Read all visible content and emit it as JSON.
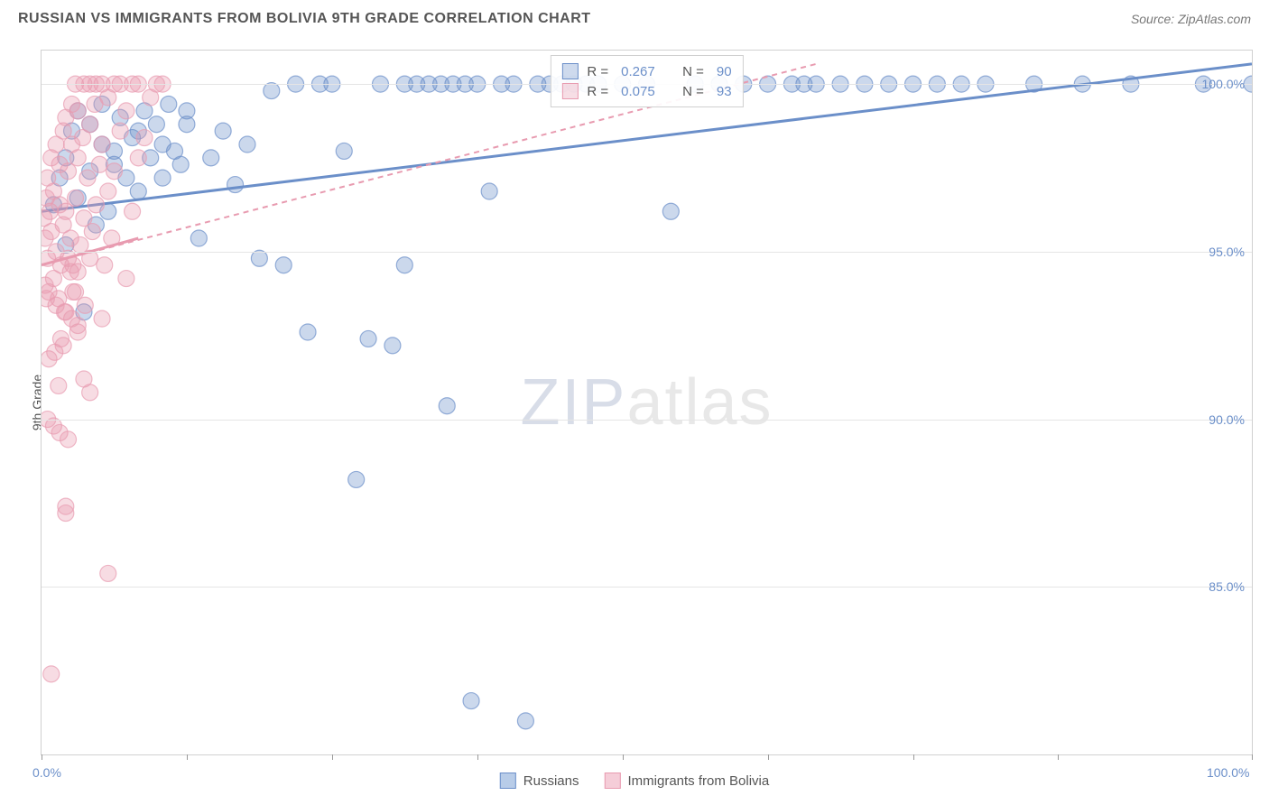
{
  "header": {
    "title": "RUSSIAN VS IMMIGRANTS FROM BOLIVIA 9TH GRADE CORRELATION CHART",
    "source": "Source: ZipAtlas.com"
  },
  "chart": {
    "type": "scatter",
    "ylabel": "9th Grade",
    "xlim": [
      0,
      100
    ],
    "ylim": [
      80,
      101
    ],
    "xtick_positions": [
      0,
      12,
      24,
      36,
      48,
      60,
      72,
      84,
      100
    ],
    "xtick_labels": {
      "0": "0.0%",
      "100": "100.0%"
    },
    "ytick_positions": [
      85,
      90,
      95,
      100
    ],
    "ytick_labels": [
      "85.0%",
      "90.0%",
      "95.0%",
      "100.0%"
    ],
    "grid_color": "#e5e5e5",
    "border_color": "#d0d0d0",
    "background_color": "#ffffff",
    "marker_radius": 9,
    "marker_fill_opacity": 0.35,
    "marker_stroke_opacity": 0.7,
    "series": [
      {
        "name": "Russians",
        "color": "#6b8fc9",
        "r": "0.267",
        "n": "90",
        "trend": {
          "x1": 0,
          "y1": 96.2,
          "x2": 100,
          "y2": 100.6,
          "width": 3,
          "dash": "none"
        },
        "points": [
          [
            1,
            96.4
          ],
          [
            1.5,
            97.2
          ],
          [
            2,
            95.2
          ],
          [
            2,
            97.8
          ],
          [
            2.5,
            98.6
          ],
          [
            3,
            96.6
          ],
          [
            3,
            99.2
          ],
          [
            3.5,
            93.2
          ],
          [
            4,
            97.4
          ],
          [
            4,
            98.8
          ],
          [
            4.5,
            95.8
          ],
          [
            5,
            98.2
          ],
          [
            5,
            99.4
          ],
          [
            5.5,
            96.2
          ],
          [
            6,
            97.6
          ],
          [
            6,
            98.0
          ],
          [
            6.5,
            99.0
          ],
          [
            7,
            97.2
          ],
          [
            7.5,
            98.4
          ],
          [
            8,
            96.8
          ],
          [
            8,
            98.6
          ],
          [
            8.5,
            99.2
          ],
          [
            9,
            97.8
          ],
          [
            9.5,
            98.8
          ],
          [
            10,
            97.2
          ],
          [
            10,
            98.2
          ],
          [
            10.5,
            99.4
          ],
          [
            11,
            98.0
          ],
          [
            11.5,
            97.6
          ],
          [
            12,
            98.8
          ],
          [
            12,
            99.2
          ],
          [
            13,
            95.4
          ],
          [
            14,
            97.8
          ],
          [
            15,
            98.6
          ],
          [
            16,
            97.0
          ],
          [
            17,
            98.2
          ],
          [
            18,
            94.8
          ],
          [
            19,
            99.8
          ],
          [
            20,
            94.6
          ],
          [
            21,
            100.0
          ],
          [
            22,
            92.6
          ],
          [
            23,
            100.0
          ],
          [
            24,
            100.0
          ],
          [
            25,
            98.0
          ],
          [
            26,
            88.2
          ],
          [
            27,
            92.4
          ],
          [
            28,
            100.0
          ],
          [
            29,
            92.2
          ],
          [
            30,
            94.6
          ],
          [
            30,
            100.0
          ],
          [
            31,
            100.0
          ],
          [
            32,
            100.0
          ],
          [
            33,
            100.0
          ],
          [
            33.5,
            90.4
          ],
          [
            34,
            100.0
          ],
          [
            35,
            100.0
          ],
          [
            35.5,
            81.6
          ],
          [
            36,
            100.0
          ],
          [
            37,
            96.8
          ],
          [
            38,
            100.0
          ],
          [
            39,
            100.0
          ],
          [
            40,
            81.0
          ],
          [
            41,
            100.0
          ],
          [
            42,
            100.0
          ],
          [
            43,
            100.0
          ],
          [
            44,
            100.0
          ],
          [
            45,
            100.0
          ],
          [
            46,
            100.0
          ],
          [
            48,
            100.0
          ],
          [
            50,
            100.0
          ],
          [
            52,
            96.2
          ],
          [
            54,
            100.0
          ],
          [
            56,
            100.0
          ],
          [
            58,
            100.0
          ],
          [
            60,
            100.0
          ],
          [
            62,
            100.0
          ],
          [
            63,
            100.0
          ],
          [
            64,
            100.0
          ],
          [
            66,
            100.0
          ],
          [
            68,
            100.0
          ],
          [
            70,
            100.0
          ],
          [
            72,
            100.0
          ],
          [
            74,
            100.0
          ],
          [
            76,
            100.0
          ],
          [
            78,
            100.0
          ],
          [
            82,
            100.0
          ],
          [
            86,
            100.0
          ],
          [
            90,
            100.0
          ],
          [
            96,
            100.0
          ],
          [
            100,
            100.0
          ]
        ]
      },
      {
        "name": "Immigrants from Bolivia",
        "color": "#e89bb0",
        "r": "0.075",
        "n": "93",
        "trend": {
          "x1": 0,
          "y1": 94.6,
          "x2": 64,
          "y2": 100.6,
          "width": 2,
          "dash": "6,5"
        },
        "trend_solid": {
          "x1": 0,
          "y1": 94.6,
          "x2": 8,
          "y2": 95.4,
          "width": 3
        },
        "points": [
          [
            0.2,
            96.0
          ],
          [
            0.3,
            95.4
          ],
          [
            0.4,
            96.6
          ],
          [
            0.5,
            94.8
          ],
          [
            0.5,
            97.2
          ],
          [
            0.6,
            93.8
          ],
          [
            0.7,
            96.2
          ],
          [
            0.8,
            95.6
          ],
          [
            0.8,
            97.8
          ],
          [
            1.0,
            94.2
          ],
          [
            1.0,
            96.8
          ],
          [
            1.2,
            95.0
          ],
          [
            1.2,
            98.2
          ],
          [
            1.4,
            93.6
          ],
          [
            1.5,
            96.4
          ],
          [
            1.5,
            97.6
          ],
          [
            1.6,
            94.6
          ],
          [
            1.8,
            95.8
          ],
          [
            1.8,
            98.6
          ],
          [
            2.0,
            93.2
          ],
          [
            2.0,
            96.2
          ],
          [
            2.0,
            99.0
          ],
          [
            2.2,
            94.8
          ],
          [
            2.2,
            97.4
          ],
          [
            2.4,
            95.4
          ],
          [
            2.5,
            98.2
          ],
          [
            2.5,
            99.4
          ],
          [
            2.6,
            93.8
          ],
          [
            2.8,
            96.6
          ],
          [
            2.8,
            100.0
          ],
          [
            3.0,
            94.4
          ],
          [
            3.0,
            97.8
          ],
          [
            3.0,
            99.2
          ],
          [
            3.2,
            95.2
          ],
          [
            3.4,
            98.4
          ],
          [
            3.5,
            96.0
          ],
          [
            3.5,
            100.0
          ],
          [
            3.6,
            93.4
          ],
          [
            3.8,
            97.2
          ],
          [
            4.0,
            94.8
          ],
          [
            4.0,
            98.8
          ],
          [
            4.0,
            100.0
          ],
          [
            4.2,
            95.6
          ],
          [
            4.4,
            99.4
          ],
          [
            4.5,
            96.4
          ],
          [
            4.5,
            100.0
          ],
          [
            4.8,
            97.6
          ],
          [
            5.0,
            93.0
          ],
          [
            5.0,
            98.2
          ],
          [
            5.0,
            100.0
          ],
          [
            5.2,
            94.6
          ],
          [
            5.5,
            96.8
          ],
          [
            5.5,
            99.6
          ],
          [
            5.8,
            95.4
          ],
          [
            6.0,
            97.4
          ],
          [
            6.0,
            100.0
          ],
          [
            6.5,
            98.6
          ],
          [
            6.5,
            100.0
          ],
          [
            7.0,
            94.2
          ],
          [
            7.0,
            99.2
          ],
          [
            7.5,
            96.2
          ],
          [
            7.5,
            100.0
          ],
          [
            8.0,
            97.8
          ],
          [
            8.0,
            100.0
          ],
          [
            8.5,
            98.4
          ],
          [
            9.0,
            99.6
          ],
          [
            9.5,
            100.0
          ],
          [
            10.0,
            100.0
          ],
          [
            0.5,
            90.0
          ],
          [
            1.0,
            89.8
          ],
          [
            1.5,
            89.6
          ],
          [
            2.0,
            87.4
          ],
          [
            2.5,
            93.0
          ],
          [
            3.0,
            92.6
          ],
          [
            3.5,
            91.2
          ],
          [
            4.0,
            90.8
          ],
          [
            0.8,
            82.4
          ],
          [
            2.0,
            87.2
          ],
          [
            3.0,
            92.8
          ],
          [
            1.2,
            93.4
          ],
          [
            1.8,
            92.2
          ],
          [
            2.4,
            94.4
          ],
          [
            0.6,
            91.8
          ],
          [
            1.4,
            91.0
          ],
          [
            2.2,
            89.4
          ],
          [
            0.4,
            93.6
          ],
          [
            1.6,
            92.4
          ],
          [
            2.8,
            93.8
          ],
          [
            0.3,
            94.0
          ],
          [
            1.1,
            92.0
          ],
          [
            1.9,
            93.2
          ],
          [
            2.6,
            94.6
          ],
          [
            5.5,
            85.4
          ]
        ]
      }
    ],
    "legend_bottom": [
      {
        "label": "Russians",
        "color": "#6b8fc9",
        "fill": "#b8cce8"
      },
      {
        "label": "Immigrants from Bolivia",
        "color": "#e89bb0",
        "fill": "#f5cdd8"
      }
    ],
    "watermark": {
      "zip": "ZIP",
      "atlas": "atlas"
    }
  }
}
